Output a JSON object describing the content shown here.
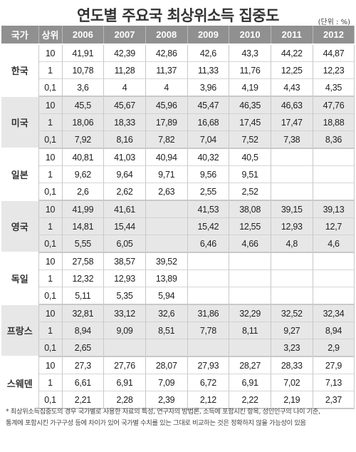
{
  "title": "연도별 주요국 최상위소득 집중도",
  "unit": "(단위 : %)",
  "headers": [
    "국가",
    "상위",
    "2006",
    "2007",
    "2008",
    "2009",
    "2010",
    "2011",
    "2012"
  ],
  "groups": [
    {
      "country": "한국",
      "rows": [
        {
          "rank": "10",
          "values": [
            "41,91",
            "42,39",
            "42,86",
            "42,6",
            "43,3",
            "44,22",
            "44,87"
          ]
        },
        {
          "rank": "1",
          "values": [
            "10,78",
            "11,28",
            "11,37",
            "11,33",
            "11,76",
            "12,25",
            "12,23"
          ]
        },
        {
          "rank": "0,1",
          "values": [
            "3,6",
            "4",
            "4",
            "3,96",
            "4,19",
            "4,43",
            "4,35"
          ]
        }
      ]
    },
    {
      "country": "미국",
      "rows": [
        {
          "rank": "10",
          "values": [
            "45,5",
            "45,67",
            "45,96",
            "45,47",
            "46,35",
            "46,63",
            "47,76"
          ]
        },
        {
          "rank": "1",
          "values": [
            "18,06",
            "18,33",
            "17,89",
            "16,68",
            "17,45",
            "17,47",
            "18,88"
          ]
        },
        {
          "rank": "0,1",
          "values": [
            "7,92",
            "8,16",
            "7,82",
            "7,04",
            "7,52",
            "7,38",
            "8,36"
          ]
        }
      ]
    },
    {
      "country": "일본",
      "rows": [
        {
          "rank": "10",
          "values": [
            "40,81",
            "41,03",
            "40,94",
            "40,32",
            "40,5",
            "",
            ""
          ]
        },
        {
          "rank": "1",
          "values": [
            "9,62",
            "9,64",
            "9,71",
            "9,56",
            "9,51",
            "",
            ""
          ]
        },
        {
          "rank": "0,1",
          "values": [
            "2,6",
            "2,62",
            "2,63",
            "2,55",
            "2,52",
            "",
            ""
          ]
        }
      ]
    },
    {
      "country": "영국",
      "rows": [
        {
          "rank": "10",
          "values": [
            "41,99",
            "41,61",
            "",
            "41,53",
            "38,08",
            "39,15",
            "39,13"
          ]
        },
        {
          "rank": "1",
          "values": [
            "14,81",
            "15,44",
            "",
            "15,42",
            "12,55",
            "12,93",
            "12,7"
          ]
        },
        {
          "rank": "0,1",
          "values": [
            "5,55",
            "6,05",
            "",
            "6,46",
            "4,66",
            "4,8",
            "4,6"
          ]
        }
      ]
    },
    {
      "country": "독일",
      "rows": [
        {
          "rank": "10",
          "values": [
            "27,58",
            "38,57",
            "39,52",
            "",
            "",
            "",
            ""
          ]
        },
        {
          "rank": "1",
          "values": [
            "12,32",
            "12,93",
            "13,89",
            "",
            "",
            "",
            ""
          ]
        },
        {
          "rank": "0,1",
          "values": [
            "5,11",
            "5,35",
            "5,94",
            "",
            "",
            "",
            ""
          ]
        }
      ]
    },
    {
      "country": "프랑스",
      "rows": [
        {
          "rank": "10",
          "values": [
            "32,81",
            "33,12",
            "32,6",
            "31,86",
            "32,29",
            "32,52",
            "32,34"
          ]
        },
        {
          "rank": "1",
          "values": [
            "8,94",
            "9,09",
            "8,51",
            "7,78",
            "8,11",
            "9,27",
            "8,94"
          ]
        },
        {
          "rank": "0,1",
          "values": [
            "2,65",
            "",
            "",
            "",
            "",
            "3,23",
            "2,9"
          ]
        }
      ]
    },
    {
      "country": "스웨덴",
      "rows": [
        {
          "rank": "10",
          "values": [
            "27,3",
            "27,76",
            "28,07",
            "27,93",
            "28,27",
            "28,33",
            "27,9"
          ]
        },
        {
          "rank": "1",
          "values": [
            "6,61",
            "6,91",
            "7,09",
            "6,72",
            "6,91",
            "7,02",
            "7,13"
          ]
        },
        {
          "rank": "0,1",
          "values": [
            "2,21",
            "2,28",
            "2,39",
            "2,12",
            "2,22",
            "2,19",
            "2,37"
          ]
        }
      ]
    }
  ],
  "note_line1": "* 최상위소득집중도의 경우 국가별로 사용한 자료의 특성, 연구자의 방법론, 소득에 포함시킨 항목, 성인인구의 나이 기준,",
  "note_line2": "통계에 포함시킨 가구구성 등에 차이가 있어 국가별 수치를 있는 그대로 비교하는 것은 정확하지 않을 가능성이 있음"
}
